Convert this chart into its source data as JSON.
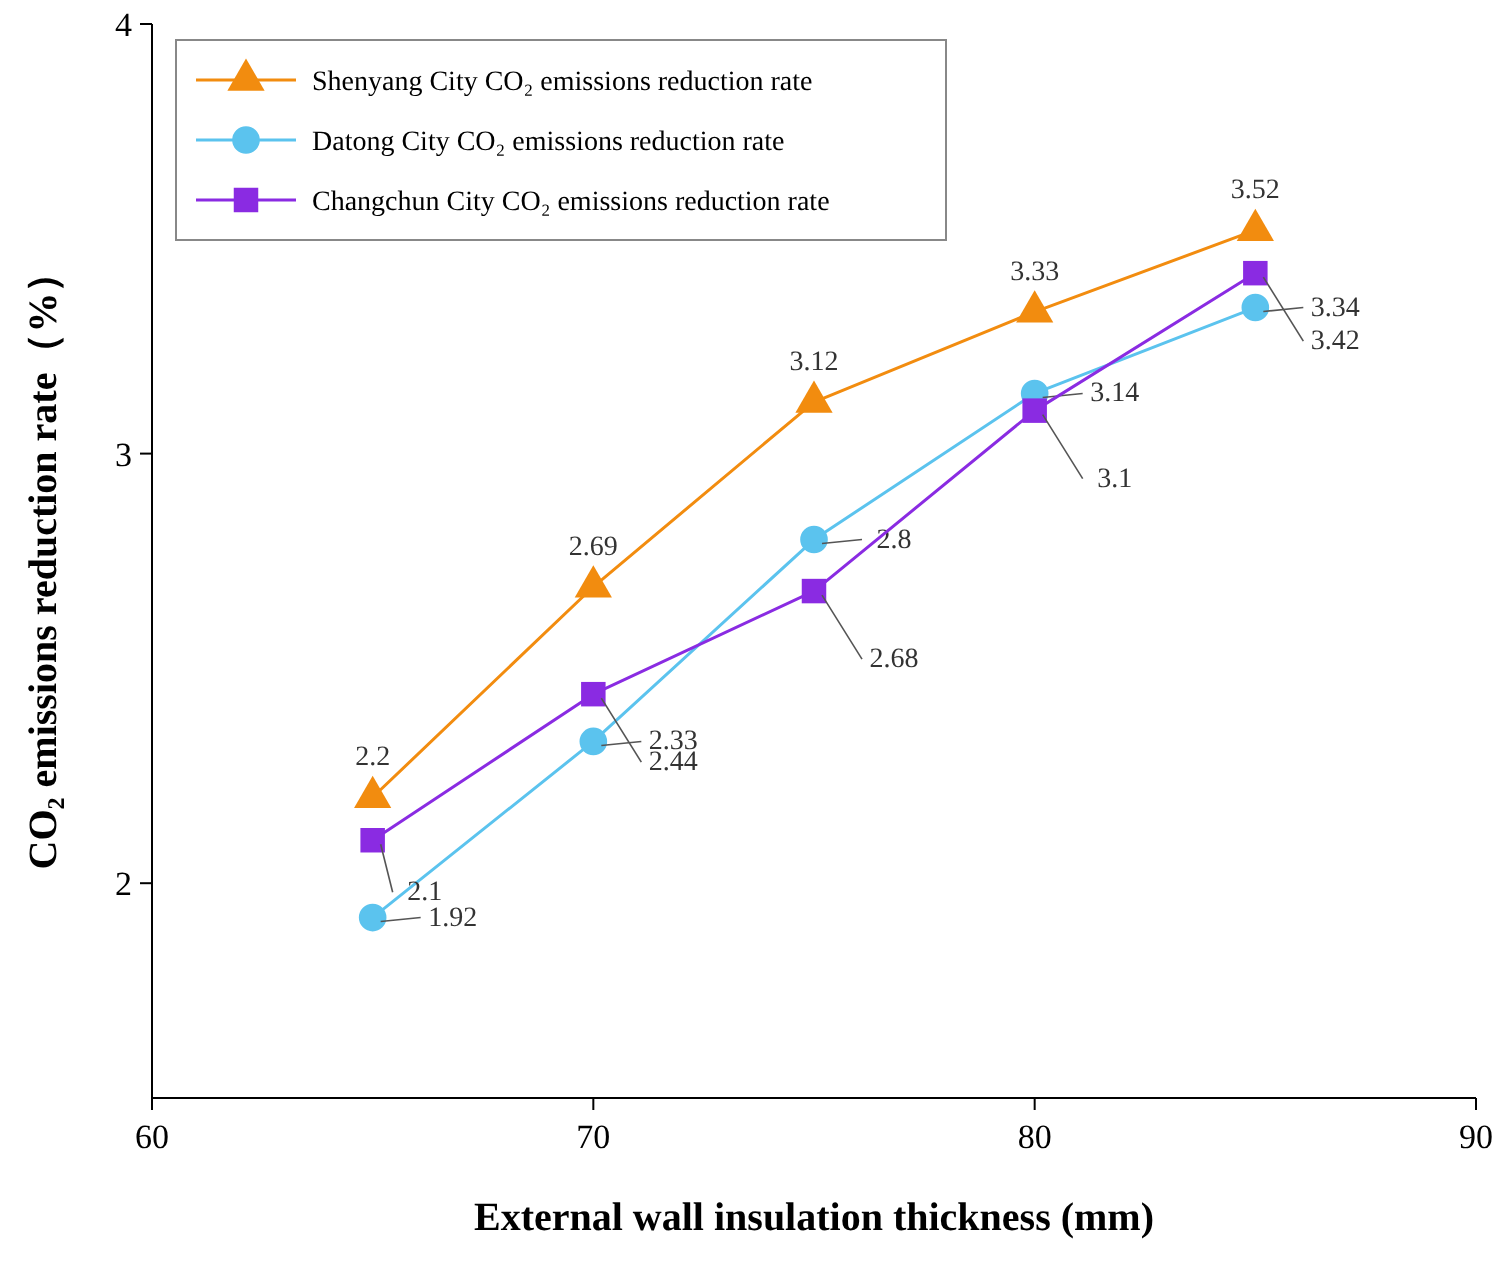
{
  "chart_data": {
    "type": "line",
    "xlabel": "External wall insulation thickness (mm)",
    "ylabel": "CO₂ emissions reduction rate（%）",
    "x": [
      65,
      70,
      75,
      80,
      85
    ],
    "xlim": [
      60,
      90
    ],
    "xticks": [
      60,
      70,
      80,
      90
    ],
    "ylim": [
      1.5,
      4
    ],
    "yticks": [
      2,
      3,
      4
    ],
    "grid": false,
    "legend": "top left",
    "data_labels": true,
    "line_style": "solid",
    "series": [
      {
        "name": "Shenyang City CO₂ emissions reduction rate",
        "color": "#f28c0f",
        "marker": "triangle",
        "values": [
          2.2,
          2.69,
          3.12,
          3.33,
          3.52
        ]
      },
      {
        "name": "Datong City CO₂ emissions reduction rate",
        "color": "#5bc3ee",
        "marker": "circle",
        "values": [
          1.92,
          2.33,
          2.8,
          3.14,
          3.34
        ]
      },
      {
        "name": "Changchun City CO₂ emissions reduction rate",
        "color": "#8a2be2",
        "marker": "square",
        "values": [
          2.1,
          2.44,
          2.68,
          3.1,
          3.42
        ]
      }
    ]
  }
}
